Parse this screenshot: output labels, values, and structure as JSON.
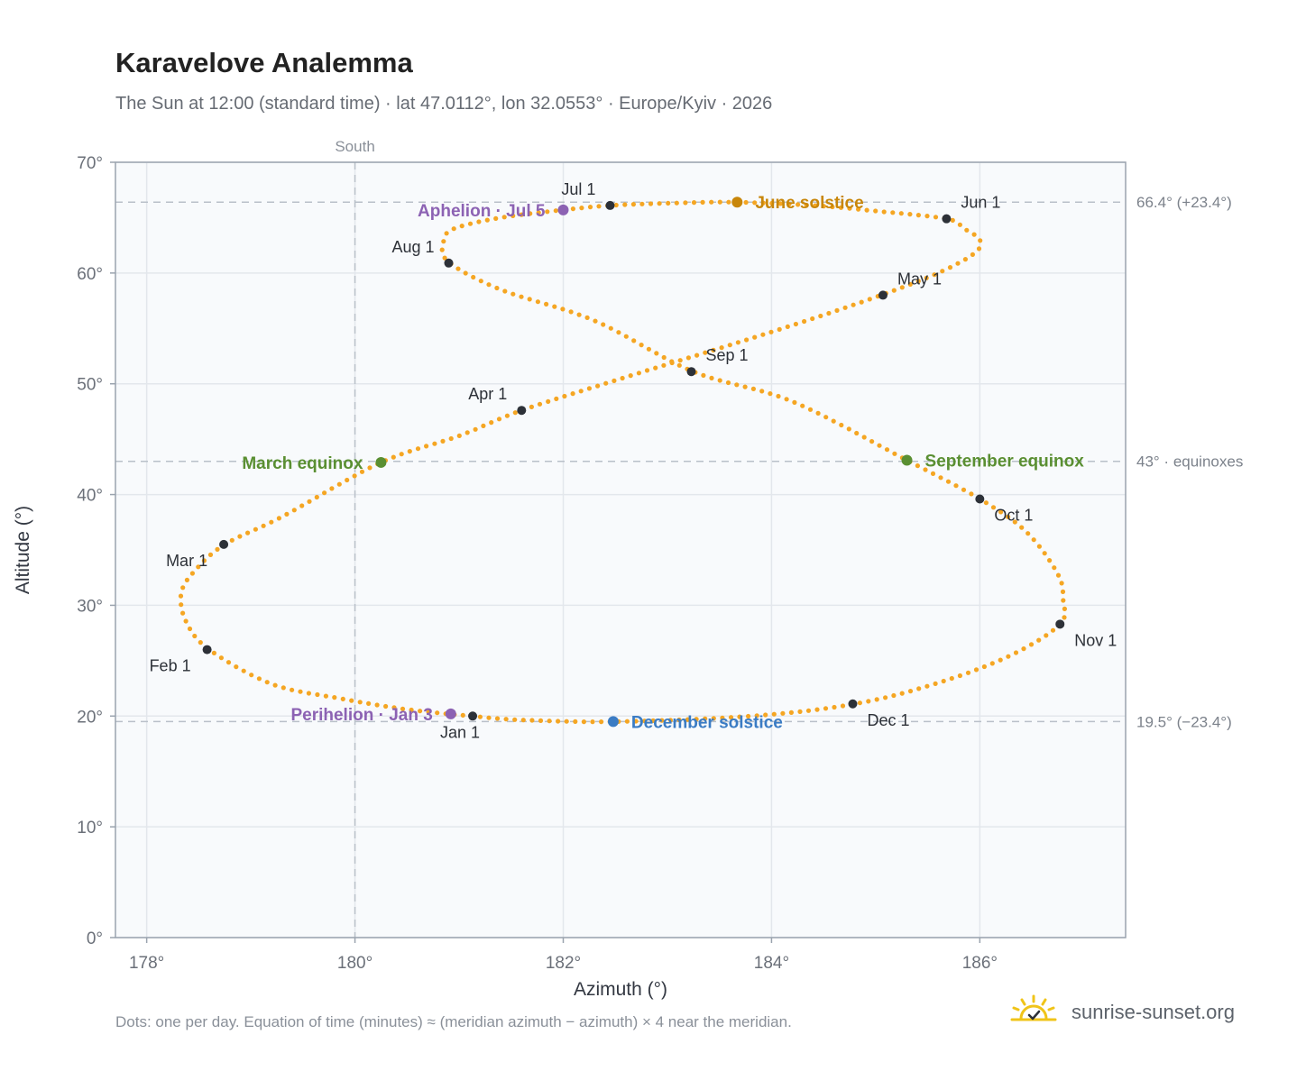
{
  "page": {
    "title": "Karavelove Analemma",
    "subtitle": "The Sun at 12:00 (standard time) · lat 47.0112°, lon 32.0553° · Europe/Kyiv · 2026",
    "footnote": "Dots: one per day. Equation of time (minutes) ≈ (meridian azimuth − azimuth) × 4 near the meridian.",
    "brand": "sunrise-sunset.org"
  },
  "colors": {
    "trail": "#f5a623",
    "month_marker": "#2d3138",
    "june_solstice": "#c8860a",
    "december_solstice": "#3b7cc4",
    "equinox": "#5a8f32",
    "apsis": "#8c62b3",
    "reference_line": "#b9c0c9",
    "plot_background": "#f8fafc",
    "grid": "#e3e7ec",
    "axis_text": "#6b7079",
    "brand_icon": "#f0c419"
  },
  "chart_data": {
    "type": "scatter",
    "xlabel": "Azimuth (°)",
    "ylabel": "Altitude (°)",
    "xlim": [
      177.7,
      187.4
    ],
    "ylim": [
      0,
      70
    ],
    "xticks": [
      178,
      180,
      182,
      184,
      186
    ],
    "xtick_labels": [
      "178°",
      "180°",
      "182°",
      "184°",
      "186°"
    ],
    "yticks": [
      0,
      10,
      20,
      30,
      40,
      50,
      60,
      70
    ],
    "ytick_labels": [
      "0°",
      "10°",
      "20°",
      "30°",
      "40°",
      "50°",
      "60°",
      "70°"
    ],
    "grid": true,
    "meridian": {
      "azimuth": 180,
      "label": "South"
    },
    "reference_lines": [
      {
        "altitude": 66.4,
        "label": "66.4° (+23.4°)"
      },
      {
        "altitude": 43.0,
        "label": "43° · equinoxes"
      },
      {
        "altitude": 19.5,
        "label": "19.5° (−23.4°)"
      }
    ],
    "series": [
      {
        "points": [
          [
            181.12,
            20.0
          ],
          [
            180.5,
            20.6
          ],
          [
            179.85,
            21.6
          ],
          [
            179.2,
            22.9
          ],
          [
            178.6,
            26.0
          ],
          [
            178.38,
            28.5
          ],
          [
            178.33,
            31.0
          ],
          [
            178.45,
            33.0
          ],
          [
            178.75,
            35.5
          ],
          [
            179.3,
            38.0
          ],
          [
            180.25,
            42.9
          ],
          [
            181.0,
            45.3
          ],
          [
            181.6,
            47.6
          ],
          [
            182.6,
            50.6
          ],
          [
            183.6,
            53.5
          ],
          [
            184.4,
            55.9
          ],
          [
            185.05,
            58.0
          ],
          [
            185.6,
            60.0
          ],
          [
            185.95,
            61.8
          ],
          [
            186.0,
            63.0
          ],
          [
            185.85,
            64.0
          ],
          [
            185.68,
            64.9
          ],
          [
            185.0,
            65.6
          ],
          [
            184.4,
            66.1
          ],
          [
            183.65,
            66.4
          ],
          [
            183.0,
            66.3
          ],
          [
            182.45,
            66.1
          ],
          [
            182.0,
            65.7
          ],
          [
            181.4,
            65.0
          ],
          [
            180.95,
            64.0
          ],
          [
            180.85,
            62.8
          ],
          [
            180.9,
            61.0
          ],
          [
            181.4,
            58.5
          ],
          [
            182.3,
            55.7
          ],
          [
            183.25,
            51.1
          ],
          [
            184.2,
            48.4
          ],
          [
            185.3,
            43.1
          ],
          [
            186.0,
            39.6
          ],
          [
            186.45,
            36.6
          ],
          [
            186.75,
            32.8
          ],
          [
            186.8,
            30.5
          ],
          [
            186.77,
            28.3
          ],
          [
            186.3,
            25.5
          ],
          [
            185.6,
            23.0
          ],
          [
            184.8,
            21.1
          ],
          [
            183.8,
            20.0
          ],
          [
            182.5,
            19.5
          ],
          [
            181.6,
            19.65
          ],
          [
            181.12,
            20.0
          ]
        ]
      }
    ],
    "month_markers": [
      {
        "label": "Jan 1",
        "azimuth": 181.13,
        "altitude": 20.0,
        "label_pos": "below"
      },
      {
        "label": "Feb 1",
        "azimuth": 178.58,
        "altitude": 26.0,
        "label_pos": "below-left"
      },
      {
        "label": "Mar 1",
        "azimuth": 178.74,
        "altitude": 35.5,
        "label_pos": "below-left"
      },
      {
        "label": "Apr 1",
        "azimuth": 181.6,
        "altitude": 47.6,
        "label_pos": "above-left"
      },
      {
        "label": "May 1",
        "azimuth": 185.07,
        "altitude": 58.0,
        "label_pos": "above-right"
      },
      {
        "label": "Jun 1",
        "azimuth": 185.68,
        "altitude": 64.9,
        "label_pos": "above-right"
      },
      {
        "label": "Jul 1",
        "azimuth": 182.45,
        "altitude": 66.1,
        "label_pos": "above-left"
      },
      {
        "label": "Aug 1",
        "azimuth": 180.9,
        "altitude": 60.9,
        "label_pos": "left"
      },
      {
        "label": "Sep 1",
        "azimuth": 183.23,
        "altitude": 51.1,
        "label_pos": "above-right"
      },
      {
        "label": "Oct 1",
        "azimuth": 186.0,
        "altitude": 39.6,
        "label_pos": "below-right"
      },
      {
        "label": "Nov 1",
        "azimuth": 186.77,
        "altitude": 28.3,
        "label_pos": "below-right"
      },
      {
        "label": "Dec 1",
        "azimuth": 184.78,
        "altitude": 21.1,
        "label_pos": "below-right"
      }
    ],
    "events": [
      {
        "label": "June solstice",
        "azimuth": 183.67,
        "altitude": 66.4,
        "color_key": "june_solstice",
        "label_pos": "right"
      },
      {
        "label": "December solstice",
        "azimuth": 182.48,
        "altitude": 19.5,
        "color_key": "december_solstice",
        "label_pos": "right"
      },
      {
        "label": "March equinox",
        "azimuth": 180.25,
        "altitude": 42.9,
        "color_key": "equinox",
        "label_pos": "left"
      },
      {
        "label": "September equinox",
        "azimuth": 185.3,
        "altitude": 43.1,
        "color_key": "equinox",
        "label_pos": "right"
      },
      {
        "label": "Aphelion · Jul 5",
        "azimuth": 182.0,
        "altitude": 65.7,
        "color_key": "apsis",
        "label_pos": "left"
      },
      {
        "label": "Perihelion · Jan 3",
        "azimuth": 180.92,
        "altitude": 20.2,
        "color_key": "apsis",
        "label_pos": "left"
      }
    ]
  }
}
